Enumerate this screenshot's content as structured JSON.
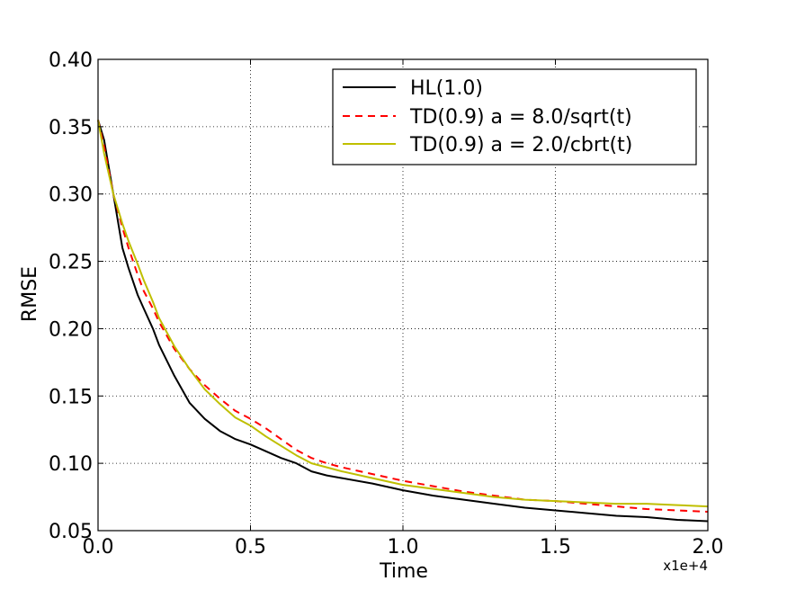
{
  "chart_data": {
    "type": "line",
    "xlabel": "Time",
    "ylabel": "RMSE",
    "x_offset_label": "x1e+4",
    "xlim": [
      0.0,
      2.0
    ],
    "ylim": [
      0.05,
      0.4
    ],
    "xticks": [
      "0.0",
      "0.5",
      "1.0",
      "1.5",
      "2.0"
    ],
    "xtick_values": [
      0.0,
      0.5,
      1.0,
      1.5,
      2.0
    ],
    "yticks": [
      "0.05",
      "0.10",
      "0.15",
      "0.20",
      "0.25",
      "0.30",
      "0.35",
      "0.40"
    ],
    "ytick_values": [
      0.05,
      0.1,
      0.15,
      0.2,
      0.25,
      0.3,
      0.35,
      0.4
    ],
    "grid": true,
    "legend_position": "top-right",
    "series": [
      {
        "name": "HL(1.0)",
        "color": "#000000",
        "style": "solid",
        "x": [
          0.0,
          0.02,
          0.05,
          0.08,
          0.1,
          0.13,
          0.15,
          0.18,
          0.2,
          0.25,
          0.3,
          0.35,
          0.4,
          0.45,
          0.5,
          0.55,
          0.6,
          0.65,
          0.7,
          0.75,
          0.8,
          0.9,
          1.0,
          1.1,
          1.2,
          1.3,
          1.4,
          1.5,
          1.6,
          1.7,
          1.8,
          1.9,
          2.0
        ],
        "y": [
          0.355,
          0.34,
          0.3,
          0.26,
          0.245,
          0.225,
          0.215,
          0.2,
          0.188,
          0.165,
          0.145,
          0.133,
          0.124,
          0.118,
          0.114,
          0.109,
          0.104,
          0.1,
          0.094,
          0.091,
          0.089,
          0.085,
          0.08,
          0.076,
          0.073,
          0.07,
          0.067,
          0.065,
          0.063,
          0.061,
          0.06,
          0.058,
          0.057
        ]
      },
      {
        "name": "TD(0.9) a = 8.0/sqrt(t)",
        "color": "#ff0000",
        "style": "dashed",
        "x": [
          0.0,
          0.02,
          0.05,
          0.08,
          0.1,
          0.13,
          0.15,
          0.18,
          0.2,
          0.25,
          0.3,
          0.35,
          0.4,
          0.45,
          0.5,
          0.55,
          0.6,
          0.65,
          0.7,
          0.75,
          0.8,
          0.9,
          1.0,
          1.1,
          1.2,
          1.3,
          1.4,
          1.5,
          1.6,
          1.7,
          1.8,
          1.9,
          2.0
        ],
        "y": [
          0.355,
          0.335,
          0.3,
          0.275,
          0.26,
          0.24,
          0.228,
          0.215,
          0.205,
          0.185,
          0.17,
          0.158,
          0.148,
          0.139,
          0.133,
          0.126,
          0.118,
          0.11,
          0.104,
          0.1,
          0.097,
          0.092,
          0.087,
          0.083,
          0.079,
          0.076,
          0.073,
          0.072,
          0.07,
          0.068,
          0.066,
          0.065,
          0.064
        ]
      },
      {
        "name": "TD(0.9) a = 2.0/cbrt(t)",
        "color": "#bfbf00",
        "style": "solid",
        "x": [
          0.0,
          0.02,
          0.05,
          0.08,
          0.1,
          0.13,
          0.15,
          0.18,
          0.2,
          0.25,
          0.3,
          0.35,
          0.4,
          0.45,
          0.5,
          0.55,
          0.6,
          0.65,
          0.7,
          0.75,
          0.8,
          0.9,
          1.0,
          1.1,
          1.2,
          1.3,
          1.4,
          1.5,
          1.6,
          1.7,
          1.8,
          1.9,
          2.0
        ],
        "y": [
          0.355,
          0.33,
          0.3,
          0.278,
          0.265,
          0.248,
          0.236,
          0.22,
          0.208,
          0.187,
          0.17,
          0.155,
          0.144,
          0.134,
          0.128,
          0.12,
          0.113,
          0.106,
          0.1,
          0.097,
          0.094,
          0.089,
          0.084,
          0.081,
          0.078,
          0.075,
          0.073,
          0.072,
          0.071,
          0.07,
          0.07,
          0.069,
          0.068
        ]
      }
    ]
  }
}
